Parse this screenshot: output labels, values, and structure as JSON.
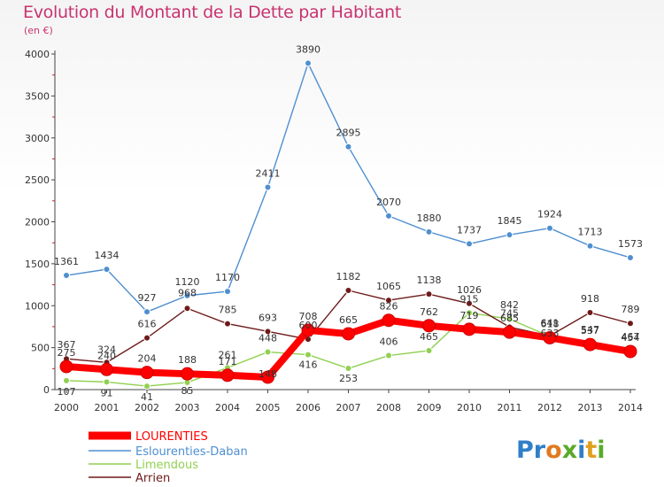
{
  "title": "Evolution du Montant de la Dette par Habitant",
  "subtitle": "(en €)",
  "logo_text": "Proxiti",
  "chart_data": {
    "type": "line",
    "x": [
      "2000",
      "2001",
      "2002",
      "2003",
      "2004",
      "2005",
      "2006",
      "2007",
      "2008",
      "2009",
      "2010",
      "2011",
      "2012",
      "2013",
      "2014"
    ],
    "ylim": [
      0,
      4000
    ],
    "yticks": [
      0,
      500,
      1000,
      1500,
      2000,
      2500,
      3000,
      3500,
      4000
    ],
    "grid": false,
    "legend_position": "bottom-left",
    "series": [
      {
        "name": "LOURENTIES",
        "color": "#ff0000",
        "values": [
          275,
          240,
          204,
          188,
          171,
          148,
          708,
          665,
          826,
          762,
          719,
          685,
          618,
          537,
          454
        ]
      },
      {
        "name": "Eslourenties-Daban",
        "color": "#4f8fd0",
        "values": [
          1361,
          1434,
          927,
          1120,
          1170,
          2411,
          3890,
          2895,
          2070,
          1880,
          1737,
          1845,
          1924,
          1713,
          1573
        ]
      },
      {
        "name": "Limendous",
        "color": "#90d050",
        "values": [
          107,
          91,
          41,
          85,
          261,
          448,
          416,
          253,
          406,
          465,
          915,
          842,
          633,
          547,
          467
        ]
      },
      {
        "name": "Arrien",
        "color": "#6e1a1a",
        "values": [
          367,
          324,
          616,
          968,
          785,
          693,
          600,
          1182,
          1065,
          1138,
          1026,
          745,
          641,
          918,
          789
        ]
      }
    ]
  }
}
